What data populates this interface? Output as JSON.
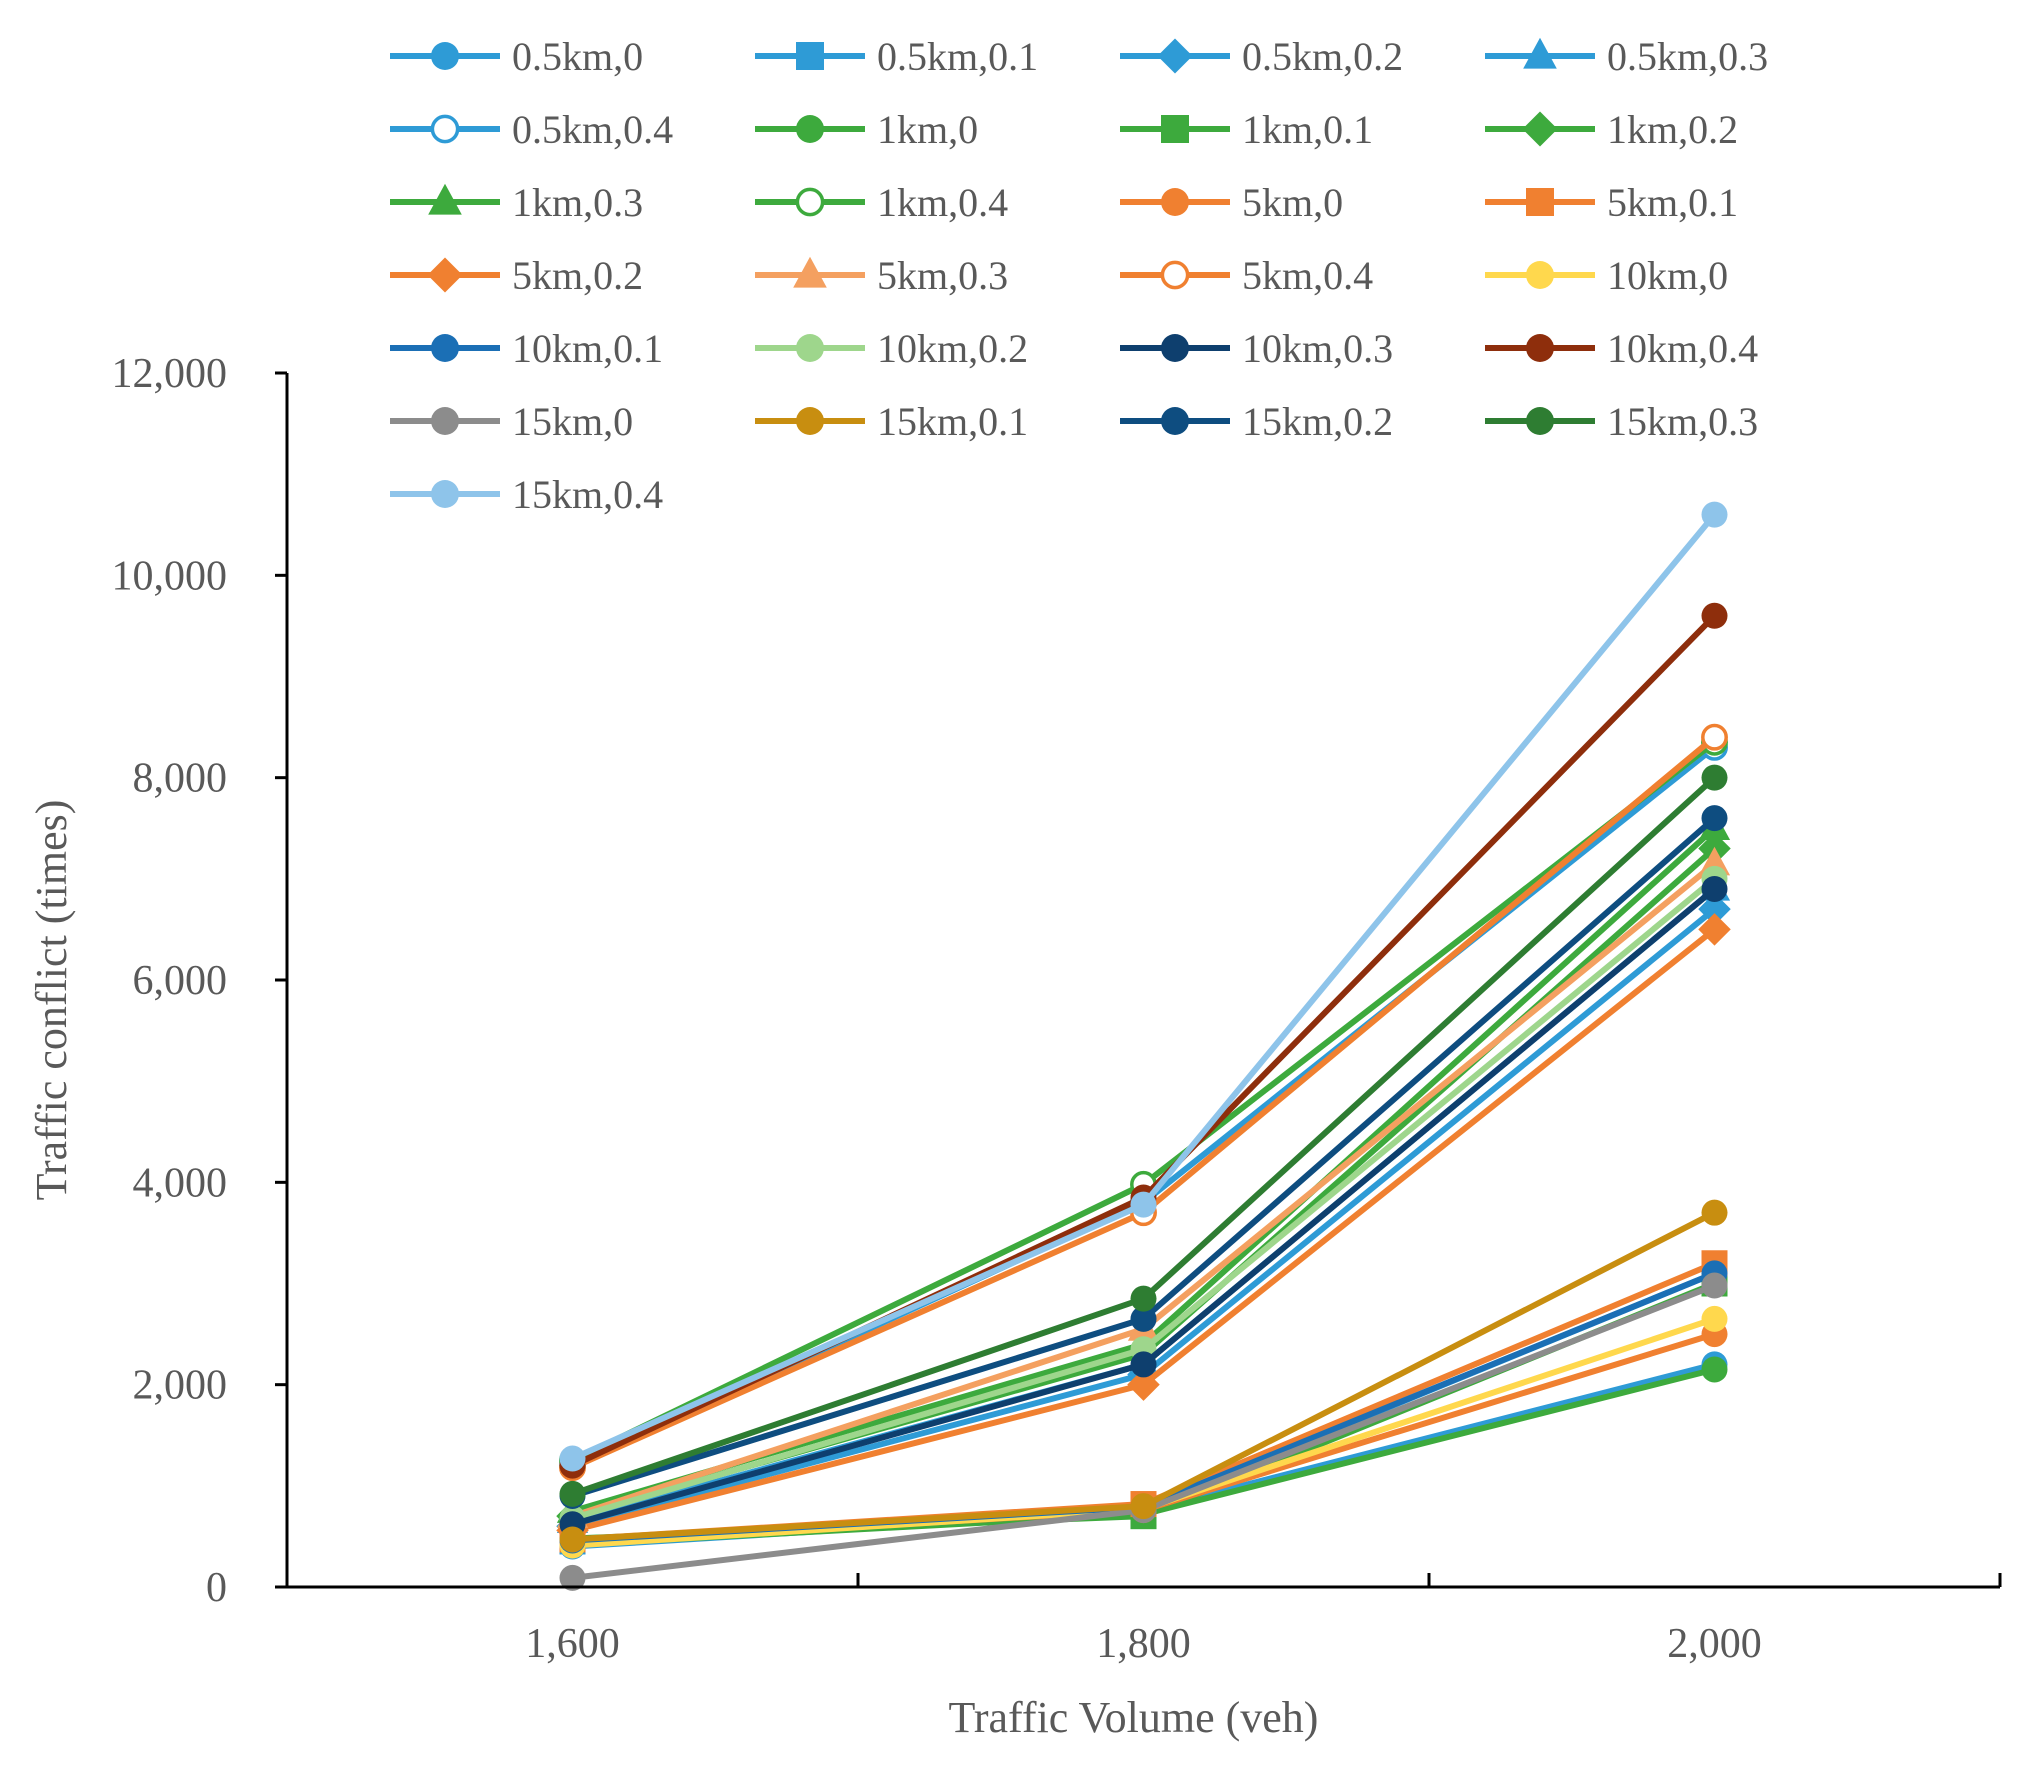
{
  "chart_data": {
    "type": "line",
    "title": "",
    "xlabel": "Traffic Volume (veh)",
    "ylabel": "Traffic conflict (times)",
    "x": [
      1600,
      1800,
      2000
    ],
    "x_tick_labels": [
      "1,600",
      "1,800",
      "2,000"
    ],
    "xlim": [
      1500,
      2100
    ],
    "ylim": [
      0,
      12000
    ],
    "y_ticks": [
      0,
      2000,
      4000,
      6000,
      8000,
      10000,
      12000
    ],
    "y_tick_labels": [
      "0",
      "2,000",
      "4,000",
      "6,000",
      "8,000",
      "10,000",
      "12,000"
    ],
    "grid": false,
    "legend_position": "top",
    "series": [
      {
        "name": "0.5km,0",
        "color": "#2E9BD6",
        "marker": "circle",
        "values": [
          400,
          750,
          2200
        ]
      },
      {
        "name": "0.5km,0.1",
        "color": "#2E9BD6",
        "marker": "square",
        "values": [
          450,
          780,
          3100
        ]
      },
      {
        "name": "0.5km,0.2",
        "color": "#2E9BD6",
        "marker": "diamond",
        "values": [
          600,
          2100,
          6700
        ]
      },
      {
        "name": "0.5km,0.3",
        "color": "#2E9BD6",
        "marker": "triangle",
        "values": [
          650,
          2200,
          6900
        ]
      },
      {
        "name": "0.5km,0.4",
        "color": "#2E9BD6",
        "marker": "open-circle",
        "values": [
          1200,
          3800,
          8300
        ]
      },
      {
        "name": "1km,0",
        "color": "#3DAA3D",
        "marker": "circle",
        "values": [
          420,
          720,
          2150
        ]
      },
      {
        "name": "1km,0.1",
        "color": "#3DAA3D",
        "marker": "square",
        "values": [
          480,
          700,
          3000
        ]
      },
      {
        "name": "1km,0.2",
        "color": "#3DAA3D",
        "marker": "diamond",
        "values": [
          700,
          2300,
          7300
        ]
      },
      {
        "name": "1km,0.3",
        "color": "#3DAA3D",
        "marker": "triangle",
        "values": [
          750,
          2400,
          7500
        ]
      },
      {
        "name": "1km,0.4",
        "color": "#3DAA3D",
        "marker": "open-circle",
        "values": [
          1250,
          3980,
          8350
        ]
      },
      {
        "name": "5km,0",
        "color": "#F08030",
        "marker": "circle",
        "values": [
          430,
          760,
          2500
        ]
      },
      {
        "name": "5km,0.1",
        "color": "#F08030",
        "marker": "square",
        "values": [
          470,
          820,
          3200
        ]
      },
      {
        "name": "5km,0.2",
        "color": "#F08030",
        "marker": "diamond",
        "values": [
          560,
          2000,
          6500
        ]
      },
      {
        "name": "5km,0.3",
        "color": "#F4A060",
        "marker": "triangle",
        "values": [
          700,
          2550,
          7150
        ]
      },
      {
        "name": "5km,0.4",
        "color": "#F08030",
        "marker": "open-circle",
        "values": [
          1180,
          3700,
          8400
        ]
      },
      {
        "name": "10km,0",
        "color": "#FFD84D",
        "marker": "circle",
        "values": [
          410,
          770,
          2650
        ]
      },
      {
        "name": "10km,0.1",
        "color": "#1B6FB5",
        "marker": "circle",
        "values": [
          460,
          790,
          3100
        ]
      },
      {
        "name": "10km,0.2",
        "color": "#9ED68C",
        "marker": "circle",
        "values": [
          680,
          2350,
          7000
        ]
      },
      {
        "name": "10km,0.3",
        "color": "#0E3F6E",
        "marker": "circle",
        "values": [
          620,
          2200,
          6900
        ]
      },
      {
        "name": "10km,0.4",
        "color": "#8E2E0C",
        "marker": "circle",
        "values": [
          1200,
          3850,
          9600
        ]
      },
      {
        "name": "15km,0",
        "color": "#8C8C8C",
        "marker": "circle",
        "values": [
          90,
          760,
          2980
        ]
      },
      {
        "name": "15km,0.1",
        "color": "#C88E10",
        "marker": "circle",
        "values": [
          470,
          800,
          3700
        ]
      },
      {
        "name": "15km,0.2",
        "color": "#0E4D80",
        "marker": "circle",
        "values": [
          900,
          2650,
          7600
        ]
      },
      {
        "name": "15km,0.3",
        "color": "#2E7D32",
        "marker": "circle",
        "values": [
          920,
          2850,
          8000
        ]
      },
      {
        "name": "15km,0.4",
        "color": "#8EC4EA",
        "marker": "circle",
        "values": [
          1270,
          3780,
          10600
        ]
      }
    ]
  }
}
